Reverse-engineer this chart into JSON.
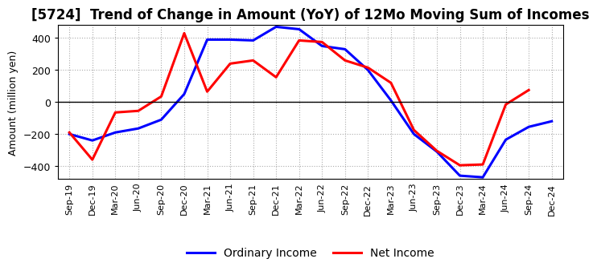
{
  "title": "[5724]  Trend of Change in Amount (YoY) of 12Mo Moving Sum of Incomes",
  "ylabel": "Amount (million yen)",
  "x_labels": [
    "Sep-19",
    "Dec-19",
    "Mar-20",
    "Jun-20",
    "Sep-20",
    "Dec-20",
    "Mar-21",
    "Jun-21",
    "Sep-21",
    "Dec-21",
    "Mar-22",
    "Jun-22",
    "Sep-22",
    "Dec-22",
    "Mar-23",
    "Jun-23",
    "Sep-23",
    "Dec-23",
    "Mar-24",
    "Jun-24",
    "Sep-24",
    "Dec-24"
  ],
  "ordinary_income": [
    -200,
    -240,
    -190,
    -165,
    -110,
    50,
    390,
    390,
    385,
    470,
    455,
    350,
    330,
    200,
    10,
    -200,
    -310,
    -460,
    -470,
    -235,
    -155,
    -120
  ],
  "net_income": [
    -190,
    -360,
    -65,
    -55,
    35,
    430,
    65,
    240,
    260,
    155,
    385,
    375,
    260,
    215,
    120,
    -175,
    -305,
    -395,
    -390,
    -15,
    75,
    null
  ],
  "ylim": [
    -480,
    480
  ],
  "yticks": [
    -400,
    -200,
    0,
    200,
    400
  ],
  "ordinary_income_color": "#0000ff",
  "net_income_color": "#ff0000",
  "line_width": 2.2,
  "background_color": "#ffffff",
  "grid_color": "#aaaaaa",
  "title_fontsize": 12,
  "axis_fontsize": 9,
  "tick_fontsize": 8,
  "legend_fontsize": 10
}
